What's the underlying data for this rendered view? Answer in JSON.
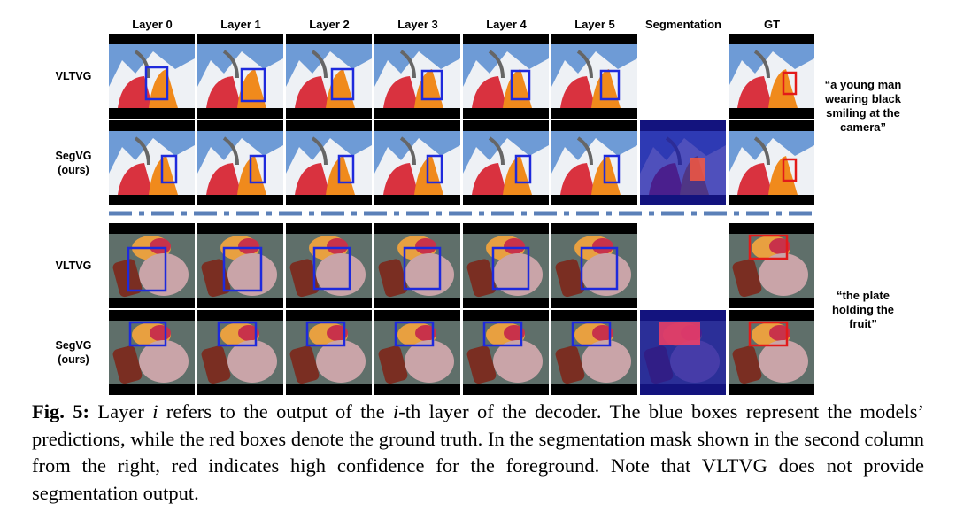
{
  "columns": [
    "Layer 0",
    "Layer 1",
    "Layer 2",
    "Layer 3",
    "Layer 4",
    "Layer 5",
    "Segmentation",
    "GT"
  ],
  "examples": [
    {
      "rows": [
        {
          "name": "VLTVG"
        },
        {
          "name": "SegVG",
          "note": "(ours)"
        }
      ],
      "query": "“a young man wearing black smiling at the camera”"
    },
    {
      "rows": [
        {
          "name": "VLTVG"
        },
        {
          "name": "SegVG",
          "note": "(ours)"
        }
      ],
      "query": "“the plate holding the fruit”"
    }
  ],
  "caption": {
    "label": "Fig. 5:",
    "parts": [
      "Layer ",
      "i",
      " refers to the output of the ",
      "i",
      "-th layer of the decoder. The blue boxes represent the models’ predictions, while the red boxes denote the ground truth. In the segmentation mask shown in the second column from the right, red indicates high confidence for the foreground. Note that VLTVG does not provide segmentation output."
    ]
  }
}
